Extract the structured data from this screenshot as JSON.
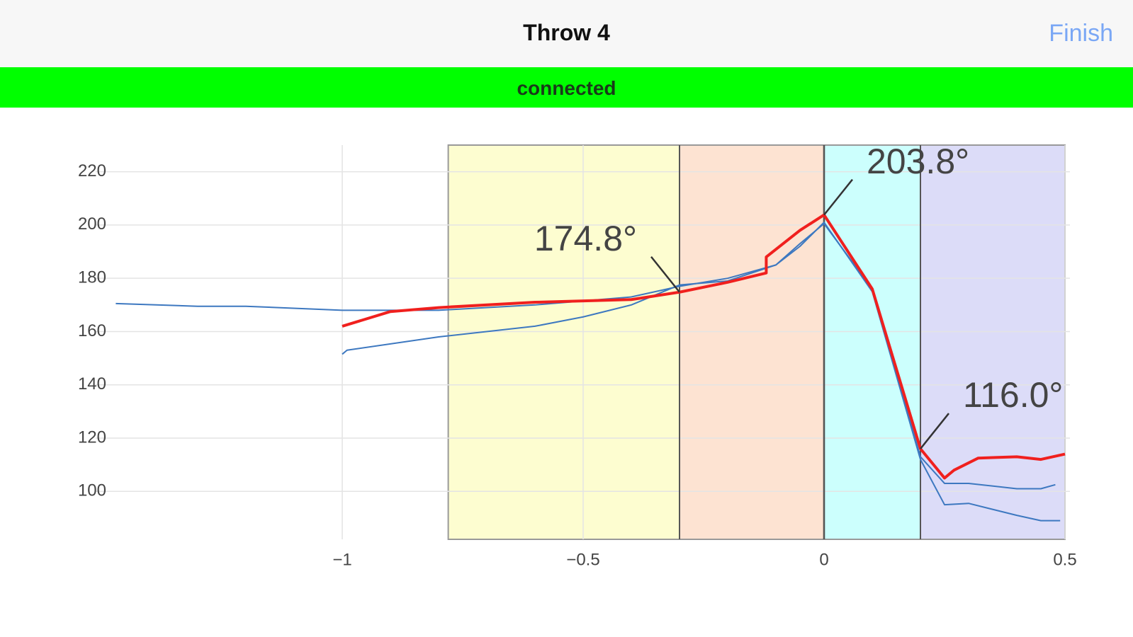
{
  "header": {
    "title": "Throw 4",
    "action": "Finish"
  },
  "status": {
    "text": "connected",
    "color": "#00ff00"
  },
  "chart_data": {
    "type": "line",
    "xlim": [
      -1.475,
      0.5
    ],
    "ylim": [
      82,
      230
    ],
    "xticks": [
      {
        "value": -1,
        "label": "−1"
      },
      {
        "value": -0.5,
        "label": "−0.5"
      },
      0,
      0.5
    ],
    "yticks": [
      100,
      120,
      140,
      160,
      180,
      200,
      220
    ],
    "grid": true,
    "regions": [
      {
        "x0": -0.78,
        "x1": -0.3,
        "color": "#fdfdd0"
      },
      {
        "x0": -0.3,
        "x1": 0,
        "color": "#fde3d2"
      },
      {
        "x0": 0,
        "x1": 0.2,
        "color": "#ccfffd"
      },
      {
        "x0": 0.2,
        "x1": 0.5,
        "color": "#dcdcf8"
      }
    ],
    "series": [
      {
        "color": "#3d78c0",
        "width": 2,
        "x": [
          -1.47,
          -1.3,
          -1.2,
          -1.0,
          -0.8,
          -0.6,
          -0.4,
          -0.3,
          -0.2,
          -0.1,
          -0.05,
          0,
          0.1,
          0.2,
          0.25,
          0.3,
          0.4,
          0.45,
          0.48
        ],
        "values": [
          170.5,
          169.5,
          169.5,
          168,
          168,
          170,
          173,
          177,
          180,
          185,
          193,
          200.5,
          176,
          113,
          103,
          103,
          101,
          101,
          102.5
        ]
      },
      {
        "color": "#3d78c0",
        "width": 2,
        "x": [
          -1,
          -0.99,
          -0.8,
          -0.6,
          -0.5,
          -0.4,
          -0.3,
          -0.2,
          -0.1,
          -0.05,
          0,
          0.1,
          0.2,
          0.25,
          0.3,
          0.4,
          0.45,
          0.49
        ],
        "values": [
          151.5,
          153,
          158,
          162,
          165.5,
          170,
          177.5,
          179,
          185,
          192,
          201,
          175,
          112,
          95,
          95.5,
          91,
          89,
          89
        ]
      },
      {
        "color": "#f0201e",
        "width": 4,
        "x": [
          -1,
          -0.9,
          -0.8,
          -0.6,
          -0.4,
          -0.3,
          -0.2,
          -0.12,
          -0.12,
          -0.05,
          0,
          0.1,
          0.2,
          0.25,
          0.27,
          0.32,
          0.4,
          0.45,
          0.5
        ],
        "values": [
          162,
          167.5,
          169,
          171,
          172,
          174.8,
          178.5,
          182,
          188,
          198,
          203.8,
          176,
          116,
          105,
          108,
          112.5,
          113,
          112,
          114
        ]
      }
    ],
    "annotations": [
      {
        "x": -0.3,
        "y": 174.8,
        "text": "174.8°"
      },
      {
        "x": 0,
        "y": 203.8,
        "text": "203.8°"
      },
      {
        "x": 0.2,
        "y": 116,
        "text": "116.0°"
      }
    ]
  }
}
